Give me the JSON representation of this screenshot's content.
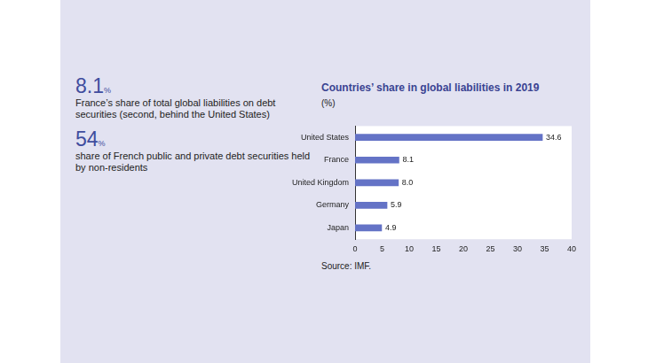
{
  "highlights": [
    {
      "value": "8.1",
      "unit": "%",
      "text": "France’s share of total global liabilities on debt securities (second, behind the United States)"
    },
    {
      "value": "54",
      "unit": "%",
      "text": "share of French public and private debt securities held by non-residents"
    }
  ],
  "chart_data": {
    "type": "bar",
    "orientation": "horizontal",
    "title": "Countries’ share in global liabilities in 2019",
    "subtitle": "(%)",
    "source": "Source: IMF.",
    "categories": [
      "United States",
      "France",
      "United Kingdom",
      "Germany",
      "Japan"
    ],
    "values": [
      34.6,
      8.1,
      8.0,
      5.9,
      4.9
    ],
    "value_labels": [
      "34.6",
      "8.1",
      "8.0",
      "5.9",
      "4.9"
    ],
    "color": "#6473c6",
    "xlim": [
      0,
      40
    ],
    "xticks": [
      0,
      5,
      10,
      15,
      20,
      25,
      30,
      35,
      40
    ],
    "grid": false,
    "data_labels": true
  }
}
